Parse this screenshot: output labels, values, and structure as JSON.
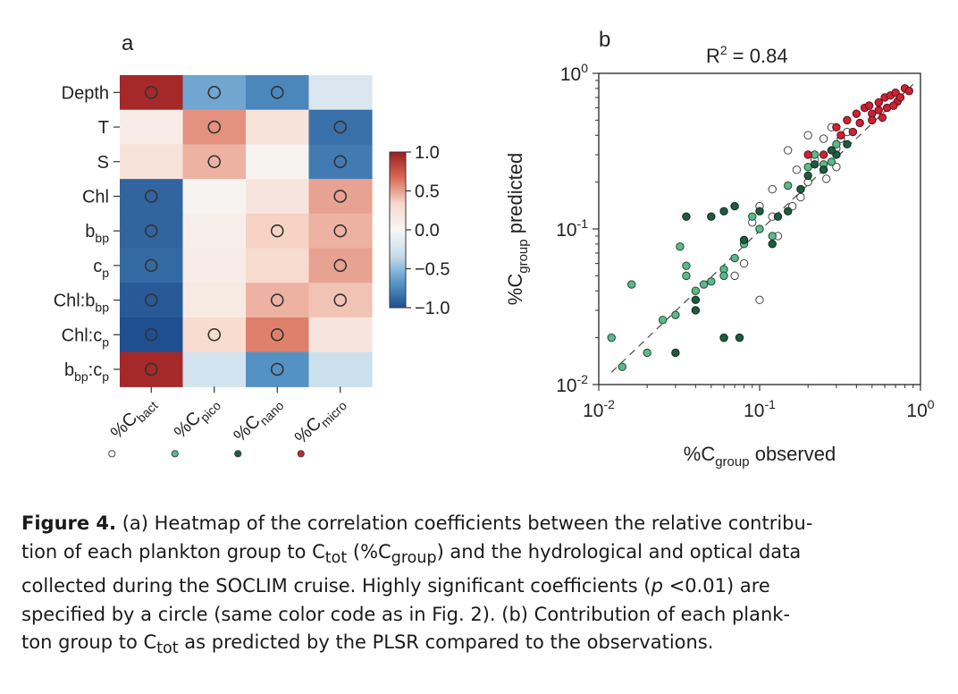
{
  "figure": {
    "panel_a_label": "a",
    "panel_b_label": "b"
  },
  "chart_data": [
    {
      "type": "heatmap",
      "panel": "a",
      "rows": [
        "Depth",
        "T",
        "S",
        "Chl",
        "b_bp",
        "c_p",
        "Chl:b_bp",
        "Chl:c_p",
        "b_bp:c_p"
      ],
      "row_labels": [
        {
          "main": "Depth",
          "sub": ""
        },
        {
          "main": "T",
          "sub": ""
        },
        {
          "main": "S",
          "sub": ""
        },
        {
          "main": "Chl",
          "sub": ""
        },
        {
          "main": "b",
          "sub": "bp"
        },
        {
          "main": "c",
          "sub": "p"
        },
        {
          "main": "Chl:b",
          "sub": "bp"
        },
        {
          "main": "Chl:c",
          "sub": "p"
        },
        {
          "main": "b",
          "sub": "bp",
          "main2": ":c",
          "sub2": "p"
        }
      ],
      "columns": [
        "%C_bact",
        "%C_pico",
        "%C_nano",
        "%C_micro"
      ],
      "column_labels": [
        {
          "main": "%C",
          "sub": "bact"
        },
        {
          "main": "%C",
          "sub": "pico"
        },
        {
          "main": "%C",
          "sub": "nano"
        },
        {
          "main": "%C",
          "sub": "micro"
        }
      ],
      "column_marker_colors": [
        "#ffffff",
        "#5db88a",
        "#1f5b3f",
        "#cc2233"
      ],
      "values": [
        [
          0.95,
          -0.6,
          -0.75,
          -0.2
        ],
        [
          0.12,
          0.55,
          0.22,
          -0.85
        ],
        [
          0.22,
          0.45,
          0.05,
          -0.8
        ],
        [
          -0.9,
          0.05,
          0.2,
          0.5
        ],
        [
          -0.9,
          0.1,
          0.35,
          0.45
        ],
        [
          -0.88,
          0.12,
          0.3,
          0.5
        ],
        [
          -0.95,
          0.15,
          0.45,
          0.4
        ],
        [
          -1.0,
          0.3,
          0.6,
          0.2
        ],
        [
          0.95,
          -0.25,
          -0.7,
          -0.3
        ]
      ],
      "significant": [
        [
          1,
          1,
          1,
          0
        ],
        [
          0,
          1,
          0,
          1
        ],
        [
          0,
          1,
          0,
          1
        ],
        [
          1,
          0,
          0,
          1
        ],
        [
          1,
          0,
          1,
          1
        ],
        [
          1,
          0,
          0,
          1
        ],
        [
          1,
          0,
          1,
          1
        ],
        [
          1,
          1,
          1,
          0
        ],
        [
          1,
          0,
          1,
          0
        ]
      ],
      "colorbar_ticks": [
        "1.0",
        "0.5",
        "0.0",
        "−0.5",
        "−1.0"
      ],
      "colorbar_range": [
        -1.0,
        1.0
      ],
      "colorbar_stops": [
        "#9b1d20",
        "#d96a56",
        "#f7d9cb",
        "#f7f7f7",
        "#c7dcec",
        "#5a99c9",
        "#1f4f8f"
      ]
    },
    {
      "type": "scatter",
      "panel": "b",
      "title": "R² = 0.84",
      "title_main": "R",
      "title_sup": "2",
      "title_rest": " = 0.84",
      "xscale": "log",
      "yscale": "log",
      "xlim": [
        0.01,
        1.0
      ],
      "ylim": [
        0.01,
        1.0
      ],
      "x_ticks": [
        {
          "value": 0.01,
          "base": "10",
          "exp": "-2"
        },
        {
          "value": 0.1,
          "base": "10",
          "exp": "-1"
        },
        {
          "value": 1.0,
          "base": "10",
          "exp": "0"
        }
      ],
      "y_ticks": [
        {
          "value": 0.01,
          "base": "10",
          "exp": "-2"
        },
        {
          "value": 0.1,
          "base": "10",
          "exp": "-1"
        },
        {
          "value": 1.0,
          "base": "10",
          "exp": "0"
        }
      ],
      "xlabel": {
        "main": "%C",
        "sub": "group",
        "rest": " observed"
      },
      "ylabel": {
        "main": "%C",
        "sub": "group",
        "rest": " predicted"
      },
      "reference_line": {
        "style": "dashed",
        "x": [
          0.012,
          0.9
        ],
        "y": [
          0.012,
          0.85
        ]
      },
      "series": [
        {
          "name": "%C_bact",
          "color": "#ffffff",
          "edge": "#444444",
          "points": [
            [
              0.2,
              0.4
            ],
            [
              0.28,
              0.45
            ],
            [
              0.25,
              0.38
            ],
            [
              0.15,
              0.32
            ],
            [
              0.12,
              0.18
            ],
            [
              0.2,
              0.2
            ],
            [
              0.3,
              0.25
            ],
            [
              0.22,
              0.28
            ],
            [
              0.35,
              0.42
            ],
            [
              0.17,
              0.24
            ],
            [
              0.1,
              0.14
            ],
            [
              0.12,
              0.12
            ],
            [
              0.09,
              0.11
            ],
            [
              0.08,
              0.06
            ],
            [
              0.07,
              0.05
            ],
            [
              0.1,
              0.035
            ],
            [
              0.13,
              0.09
            ],
            [
              0.18,
              0.16
            ],
            [
              0.26,
              0.21
            ],
            [
              0.3,
              0.33
            ],
            [
              0.32,
              0.38
            ],
            [
              0.16,
              0.14
            ]
          ]
        },
        {
          "name": "%C_pico",
          "color": "#5db88a",
          "edge": "#1d4a32",
          "points": [
            [
              0.012,
              0.02
            ],
            [
              0.014,
              0.013
            ],
            [
              0.016,
              0.044
            ],
            [
              0.02,
              0.016
            ],
            [
              0.025,
              0.026
            ],
            [
              0.03,
              0.028
            ],
            [
              0.032,
              0.077
            ],
            [
              0.035,
              0.058
            ],
            [
              0.04,
              0.04
            ],
            [
              0.05,
              0.046
            ],
            [
              0.06,
              0.055
            ],
            [
              0.07,
              0.065
            ],
            [
              0.08,
              0.08
            ],
            [
              0.09,
              0.12
            ],
            [
              0.1,
              0.1
            ],
            [
              0.12,
              0.09
            ],
            [
              0.15,
              0.19
            ],
            [
              0.2,
              0.25
            ],
            [
              0.25,
              0.26
            ],
            [
              0.3,
              0.35
            ],
            [
              0.28,
              0.27
            ],
            [
              0.035,
              0.05
            ],
            [
              0.045,
              0.044
            ],
            [
              0.06,
              0.05
            ],
            [
              0.22,
              0.3
            ]
          ]
        },
        {
          "name": "%C_nano",
          "color": "#1f5b3f",
          "edge": "#0d2a1c",
          "points": [
            [
              0.035,
              0.12
            ],
            [
              0.04,
              0.03
            ],
            [
              0.05,
              0.12
            ],
            [
              0.06,
              0.02
            ],
            [
              0.075,
              0.02
            ],
            [
              0.03,
              0.016
            ],
            [
              0.04,
              0.035
            ],
            [
              0.07,
              0.14
            ],
            [
              0.08,
              0.085
            ],
            [
              0.1,
              0.13
            ],
            [
              0.13,
              0.12
            ],
            [
              0.15,
              0.13
            ],
            [
              0.2,
              0.22
            ],
            [
              0.25,
              0.24
            ],
            [
              0.3,
              0.3
            ],
            [
              0.35,
              0.35
            ],
            [
              0.18,
              0.18
            ],
            [
              0.12,
              0.08
            ],
            [
              0.06,
              0.13
            ],
            [
              0.22,
              0.26
            ],
            [
              0.28,
              0.32
            ]
          ]
        },
        {
          "name": "%C_micro",
          "color": "#cc2233",
          "edge": "#5c0f17",
          "points": [
            [
              0.3,
              0.45
            ],
            [
              0.35,
              0.5
            ],
            [
              0.4,
              0.55
            ],
            [
              0.45,
              0.6
            ],
            [
              0.5,
              0.55
            ],
            [
              0.55,
              0.65
            ],
            [
              0.6,
              0.7
            ],
            [
              0.65,
              0.72
            ],
            [
              0.7,
              0.75
            ],
            [
              0.8,
              0.8
            ],
            [
              0.85,
              0.77
            ],
            [
              0.5,
              0.5
            ],
            [
              0.42,
              0.48
            ],
            [
              0.38,
              0.42
            ],
            [
              0.55,
              0.58
            ],
            [
              0.62,
              0.6
            ],
            [
              0.72,
              0.66
            ],
            [
              0.2,
              0.3
            ],
            [
              0.25,
              0.3
            ],
            [
              0.48,
              0.62
            ],
            [
              0.58,
              0.52
            ],
            [
              0.32,
              0.4
            ],
            [
              0.68,
              0.62
            ],
            [
              0.75,
              0.7
            ]
          ]
        }
      ]
    }
  ],
  "caption": {
    "figure_label": "Figure 4.",
    "line1": " (a) Heatmap of the correlation coefficients between the relative contribu-",
    "line2_a": "tion of each plankton group to C",
    "line2_sub1": "tot",
    "line2_b": " (%C",
    "line2_sub2": "group",
    "line2_c": ") and the hydrological and optical data",
    "line3": "collected during the SOCLIM cruise. Highly significant coefficients (",
    "line3_p": "p",
    "line3_b": " <0.01) are",
    "line4": "specified by a circle (same color code as in Fig. 2). (b) Contribution of each plank-",
    "line5_a": "ton group to C",
    "line5_sub": "tot",
    "line5_b": " as predicted by the PLSR compared to the observations."
  }
}
